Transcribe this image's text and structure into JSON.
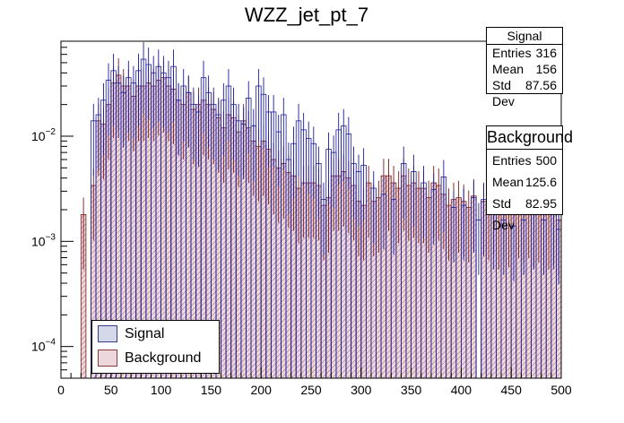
{
  "chart_data": {
    "type": "bar",
    "title": "WZZ_jet_pt_7",
    "xlabel": "",
    "ylabel": "",
    "xlim": [
      0,
      500
    ],
    "ylim": [
      5e-05,
      0.08
    ],
    "yscale": "log",
    "bin_width": 5,
    "x_ticks": [
      "0",
      "50",
      "100",
      "150",
      "200",
      "250",
      "300",
      "350",
      "400",
      "450",
      "500"
    ],
    "y_ticks": [
      {
        "value": 0.01,
        "label": "10^-2"
      },
      {
        "value": 0.001,
        "label": "10^-3"
      },
      {
        "value": 0.0001,
        "label": "10^-4"
      }
    ],
    "series": [
      {
        "name": "Signal",
        "color": "#1a1aa0",
        "fill": "#d4d8e9",
        "bins": [
          [
            30,
            0.014
          ],
          [
            35,
            0.016
          ],
          [
            40,
            0.022
          ],
          [
            45,
            0.034
          ],
          [
            50,
            0.042
          ],
          [
            55,
            0.032
          ],
          [
            60,
            0.026
          ],
          [
            65,
            0.036
          ],
          [
            70,
            0.032
          ],
          [
            75,
            0.042
          ],
          [
            80,
            0.054
          ],
          [
            85,
            0.048
          ],
          [
            90,
            0.04
          ],
          [
            95,
            0.046
          ],
          [
            100,
            0.04
          ],
          [
            105,
            0.036
          ],
          [
            110,
            0.046
          ],
          [
            115,
            0.022
          ],
          [
            120,
            0.03
          ],
          [
            125,
            0.026
          ],
          [
            130,
            0.02
          ],
          [
            135,
            0.017
          ],
          [
            140,
            0.036
          ],
          [
            145,
            0.026
          ],
          [
            150,
            0.02
          ],
          [
            155,
            0.016
          ],
          [
            160,
            0.022
          ],
          [
            165,
            0.03
          ],
          [
            170,
            0.02
          ],
          [
            175,
            0.014
          ],
          [
            180,
            0.013
          ],
          [
            185,
            0.023
          ],
          [
            190,
            0.0125
          ],
          [
            195,
            0.03
          ],
          [
            200,
            0.025
          ],
          [
            205,
            0.017
          ],
          [
            210,
            0.017
          ],
          [
            215,
            0.011
          ],
          [
            220,
            0.016
          ],
          [
            225,
            0.006
          ],
          [
            230,
            0.0085
          ],
          [
            235,
            0.014
          ],
          [
            240,
            0.0115
          ],
          [
            245,
            0.0095
          ],
          [
            250,
            0.0085
          ],
          [
            255,
            0.0055
          ],
          [
            260,
            0.0025
          ],
          [
            265,
            0.0075
          ],
          [
            270,
            0.007
          ],
          [
            275,
            0.0115
          ],
          [
            280,
            0.0125
          ],
          [
            285,
            0.0105
          ],
          [
            290,
            0.0055
          ],
          [
            295,
            0.0046
          ],
          [
            300,
            0.0053
          ],
          [
            310,
            0.0032
          ],
          [
            320,
            0.0028
          ],
          [
            330,
            0.0025
          ],
          [
            340,
            0.0055
          ],
          [
            350,
            0.0046
          ],
          [
            360,
            0.0036
          ],
          [
            370,
            0.0031
          ],
          [
            380,
            0.0041
          ],
          [
            390,
            0.0021
          ],
          [
            400,
            0.0022
          ],
          [
            410,
            0.0026
          ],
          [
            415,
            0.0016
          ],
          [
            420,
            0.0025
          ],
          [
            430,
            0.0018
          ],
          [
            440,
            0.0016
          ],
          [
            450,
            0.0014
          ],
          [
            460,
            0.0016
          ],
          [
            470,
            0.0018
          ],
          [
            480,
            0.0016
          ],
          [
            490,
            0.0018
          ],
          [
            495,
            0.0013
          ]
        ]
      },
      {
        "name": "Background",
        "color": "#7a1a1a",
        "fill": "#ecd8dc",
        "bins": [
          [
            20,
            0.0018
          ],
          [
            30,
            0.0034
          ],
          [
            35,
            0.014
          ],
          [
            40,
            0.013
          ],
          [
            45,
            0.02
          ],
          [
            50,
            0.032
          ],
          [
            55,
            0.038
          ],
          [
            60,
            0.03
          ],
          [
            65,
            0.03
          ],
          [
            70,
            0.024
          ],
          [
            75,
            0.03
          ],
          [
            80,
            0.03
          ],
          [
            85,
            0.032
          ],
          [
            90,
            0.03
          ],
          [
            95,
            0.034
          ],
          [
            100,
            0.036
          ],
          [
            105,
            0.03
          ],
          [
            110,
            0.028
          ],
          [
            115,
            0.022
          ],
          [
            120,
            0.02
          ],
          [
            125,
            0.026
          ],
          [
            130,
            0.018
          ],
          [
            135,
            0.02
          ],
          [
            140,
            0.022
          ],
          [
            145,
            0.02
          ],
          [
            150,
            0.018
          ],
          [
            155,
            0.015
          ],
          [
            160,
            0.012
          ],
          [
            165,
            0.016
          ],
          [
            170,
            0.015
          ],
          [
            175,
            0.011
          ],
          [
            180,
            0.014
          ],
          [
            185,
            0.012
          ],
          [
            190,
            0.009
          ],
          [
            195,
            0.008
          ],
          [
            200,
            0.009
          ],
          [
            205,
            0.0075
          ],
          [
            210,
            0.006
          ],
          [
            215,
            0.005
          ],
          [
            220,
            0.0055
          ],
          [
            225,
            0.0045
          ],
          [
            230,
            0.0042
          ],
          [
            235,
            0.0032
          ],
          [
            240,
            0.0036
          ],
          [
            245,
            0.0036
          ],
          [
            250,
            0.0036
          ],
          [
            255,
            0.0034
          ],
          [
            260,
            0.0022
          ],
          [
            265,
            0.0026
          ],
          [
            270,
            0.0042
          ],
          [
            275,
            0.0042
          ],
          [
            280,
            0.0046
          ],
          [
            285,
            0.004
          ],
          [
            290,
            0.0034
          ],
          [
            295,
            0.0024
          ],
          [
            300,
            0.0022
          ],
          [
            305,
            0.0036
          ],
          [
            310,
            0.0024
          ],
          [
            315,
            0.0026
          ],
          [
            320,
            0.0042
          ],
          [
            325,
            0.0042
          ],
          [
            330,
            0.0036
          ],
          [
            335,
            0.0032
          ],
          [
            340,
            0.0042
          ],
          [
            345,
            0.0034
          ],
          [
            350,
            0.0036
          ],
          [
            355,
            0.0032
          ],
          [
            360,
            0.0032
          ],
          [
            365,
            0.0026
          ],
          [
            370,
            0.0036
          ],
          [
            375,
            0.0034
          ],
          [
            380,
            0.0028
          ],
          [
            385,
            0.0022
          ],
          [
            390,
            0.0025
          ],
          [
            395,
            0.0026
          ],
          [
            400,
            0.0024
          ],
          [
            405,
            0.0021
          ],
          [
            410,
            0.0027
          ],
          [
            420,
            0.0024
          ],
          [
            425,
            0.0022
          ],
          [
            430,
            0.0025
          ],
          [
            435,
            0.0018
          ],
          [
            440,
            0.0022
          ],
          [
            445,
            0.0019
          ],
          [
            450,
            0.0024
          ],
          [
            455,
            0.0023
          ],
          [
            460,
            0.0021
          ],
          [
            465,
            0.0023
          ],
          [
            470,
            0.0019
          ],
          [
            475,
            0.0021
          ],
          [
            480,
            0.002
          ],
          [
            485,
            0.0018
          ],
          [
            490,
            0.002
          ],
          [
            495,
            0.0016
          ]
        ]
      }
    ],
    "legend": {
      "position": "bottom-left",
      "entries": [
        "Signal",
        "Background"
      ]
    }
  },
  "stats": {
    "signal": {
      "title": "Signal",
      "rows": [
        {
          "label": "Entries",
          "value": "316"
        },
        {
          "label": "Mean",
          "value": "156"
        },
        {
          "label": "Std Dev",
          "value": "87.56"
        }
      ]
    },
    "background": {
      "title": "Background",
      "rows": [
        {
          "label": "Entries",
          "value": "500"
        },
        {
          "label": "Mean",
          "value": "125.6"
        },
        {
          "label": "Std Dev",
          "value": "82.95"
        }
      ]
    }
  }
}
